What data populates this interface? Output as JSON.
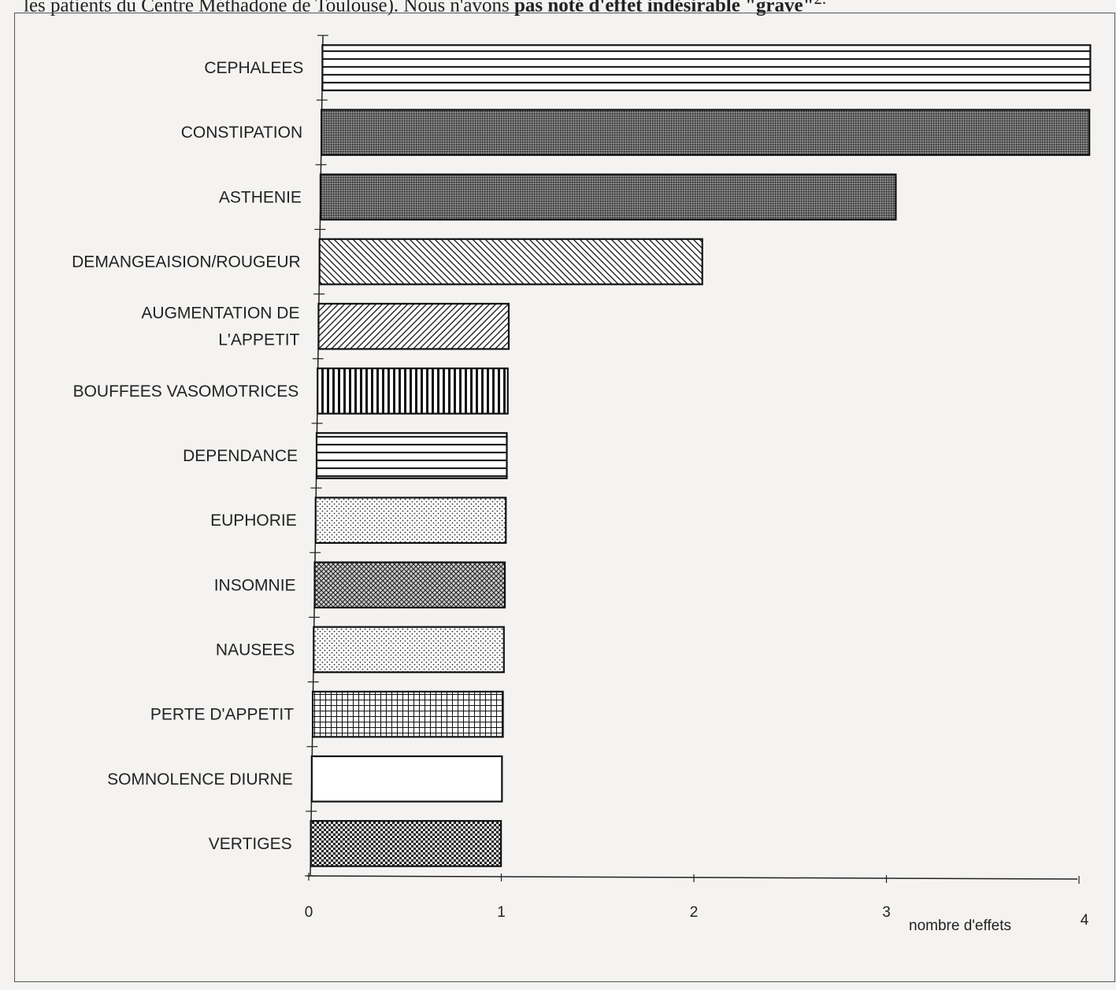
{
  "header": {
    "text_plain": "les patients du Centre Méthadone de Toulouse). Nous n'avons ",
    "text_bold": "pas noté d'effet indésirable \"grave\"",
    "text_sup": "2."
  },
  "colors": {
    "ink": "#222222",
    "paper": "#f4f3f1"
  },
  "chart_data": {
    "type": "bar",
    "orientation": "horizontal",
    "categories": [
      "CEPHALEES",
      "CONSTIPATION",
      "ASTHENIE",
      "DEMANGEAISION/ROUGEUR",
      "AUGMENTATION DE L'APPETIT",
      "BOUFFEES VASOMOTRICES",
      "DEPENDANCE",
      "EUPHORIE",
      "INSOMNIE",
      "NAUSEES",
      "PERTE D'APPETIT",
      "SOMNOLENCE DIURNE",
      "VERTIGES"
    ],
    "label_lines": [
      [
        "CEPHALEES"
      ],
      [
        "CONSTIPATION"
      ],
      [
        "ASTHENIE"
      ],
      [
        "DEMANGEAISION/ROUGEUR"
      ],
      [
        "AUGMENTATION DE",
        "L'APPETIT"
      ],
      [
        "BOUFFEES VASOMOTRICES"
      ],
      [
        "DEPENDANCE"
      ],
      [
        "EUPHORIE"
      ],
      [
        "INSOMNIE"
      ],
      [
        "NAUSEES"
      ],
      [
        "PERTE D'APPETIT"
      ],
      [
        "SOMNOLENCE DIURNE"
      ],
      [
        "VERTIGES"
      ]
    ],
    "values": [
      4,
      4,
      3,
      2,
      1,
      1,
      1,
      1,
      1,
      1,
      1,
      1,
      1
    ],
    "patterns": [
      "hlines-wide",
      "dense-dots",
      "dense-dots",
      "diag-back",
      "diag-fwd",
      "vlines",
      "hlines-wide",
      "fine-dots",
      "crosshatch",
      "fine-dots",
      "grid",
      "none",
      "checker"
    ],
    "xlabel": "nombre d'effets",
    "ticks": [
      "0",
      "1",
      "2",
      "3",
      "4"
    ],
    "xlim": [
      0,
      4
    ],
    "grid": false,
    "legend": "none"
  }
}
